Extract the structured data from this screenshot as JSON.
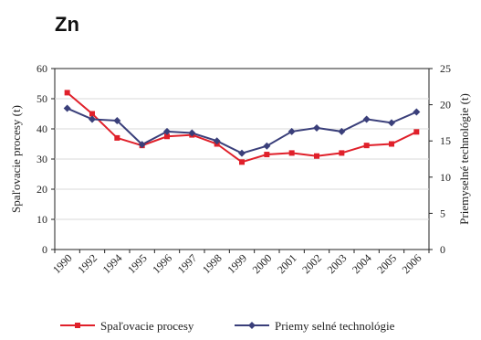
{
  "chart_data": {
    "type": "line",
    "title": "Zn",
    "categories": [
      "1990",
      "1992",
      "1994",
      "1995",
      "1996",
      "1997",
      "1998",
      "1999",
      "2000",
      "2001",
      "2002",
      "2003",
      "2004",
      "2005",
      "2006"
    ],
    "ylabel_left": "Spaľovacie procesy (t)",
    "ylabel_right": "Priemyselné technológie (t)",
    "ylim_left": [
      0,
      60
    ],
    "ylim_right": [
      0,
      25
    ],
    "yticks_left": [
      0,
      10,
      20,
      30,
      40,
      50,
      60
    ],
    "yticks_right": [
      0,
      5,
      10,
      15,
      20,
      25
    ],
    "legend_position": "bottom",
    "series": [
      {
        "name": "Spaľovacie procesy",
        "axis": "left",
        "color": "#e0202a",
        "marker": "square",
        "values": [
          52,
          45,
          37,
          34.5,
          37.5,
          38,
          35,
          29,
          31.5,
          32,
          31,
          32,
          34.5,
          35,
          39
        ]
      },
      {
        "name": "Priemy selné technológie",
        "axis": "right",
        "color": "#3a3f7a",
        "marker": "diamond",
        "values": [
          19.5,
          18,
          17.8,
          14.5,
          16.3,
          16.1,
          15,
          13.3,
          14.3,
          16.3,
          16.8,
          16.3,
          18,
          17.5,
          19
        ]
      }
    ]
  }
}
